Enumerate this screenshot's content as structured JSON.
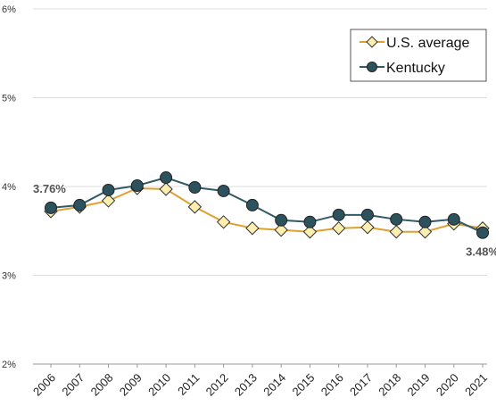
{
  "chart_data": {
    "type": "line",
    "title": "",
    "xlabel": "",
    "ylabel": "",
    "x": [
      "2006",
      "2007",
      "2008",
      "2009",
      "2010",
      "2011",
      "2012",
      "2013",
      "2014",
      "2015",
      "2016",
      "2017",
      "2018",
      "2019",
      "2020",
      "2021"
    ],
    "ylim": [
      2,
      6
    ],
    "y_ticks": [
      "2%",
      "3%",
      "4%",
      "5%",
      "6%"
    ],
    "grid": true,
    "legend_position": "top-right",
    "series": [
      {
        "name": "U.S. average",
        "color": "#e0a030",
        "marker": "diamond",
        "marker_fill": "#fbeeae",
        "values": [
          3.72,
          3.77,
          3.84,
          3.98,
          3.97,
          3.77,
          3.6,
          3.53,
          3.51,
          3.49,
          3.53,
          3.54,
          3.49,
          3.49,
          3.58,
          3.53
        ]
      },
      {
        "name": "Kentucky",
        "color": "#2f5a66",
        "marker": "circle",
        "marker_fill": "#2c525e",
        "values": [
          3.76,
          3.79,
          3.96,
          4.01,
          4.1,
          3.99,
          3.95,
          3.79,
          3.62,
          3.6,
          3.68,
          3.68,
          3.63,
          3.6,
          3.63,
          3.48
        ]
      }
    ],
    "annotations": [
      {
        "series": "Kentucky",
        "index": 0,
        "text": "3.76%"
      },
      {
        "series": "Kentucky",
        "index": 15,
        "text": "3.48%"
      }
    ]
  }
}
